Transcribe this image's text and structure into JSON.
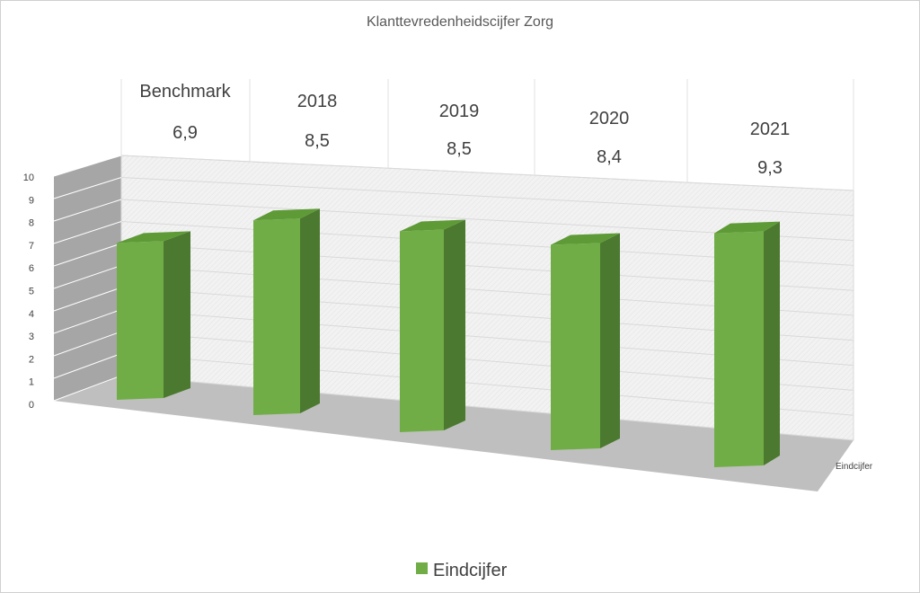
{
  "chart_data": {
    "type": "bar",
    "title": "Klanttevredenheidscijfer Zorg",
    "categories": [
      "Benchmark",
      "2018",
      "2019",
      "2020",
      "2021"
    ],
    "value_labels": [
      "6,9",
      "8,5",
      "8,5",
      "8,4",
      "9,3"
    ],
    "series": [
      {
        "name": "Eindcijfer",
        "values": [
          6.9,
          8.5,
          8.5,
          8.4,
          9.3
        ]
      }
    ],
    "ylim": [
      0,
      10
    ],
    "yticks": [
      "0",
      "1",
      "2",
      "3",
      "4",
      "5",
      "6",
      "7",
      "8",
      "9",
      "10"
    ],
    "grid": true,
    "legend": "bottom",
    "colors": {
      "bar_front": "#70ad47",
      "bar_side": "#4b792f",
      "bar_top": "#5e9a36",
      "floor": "#bfbfbf",
      "side_wall": "#a6a6a6"
    }
  }
}
